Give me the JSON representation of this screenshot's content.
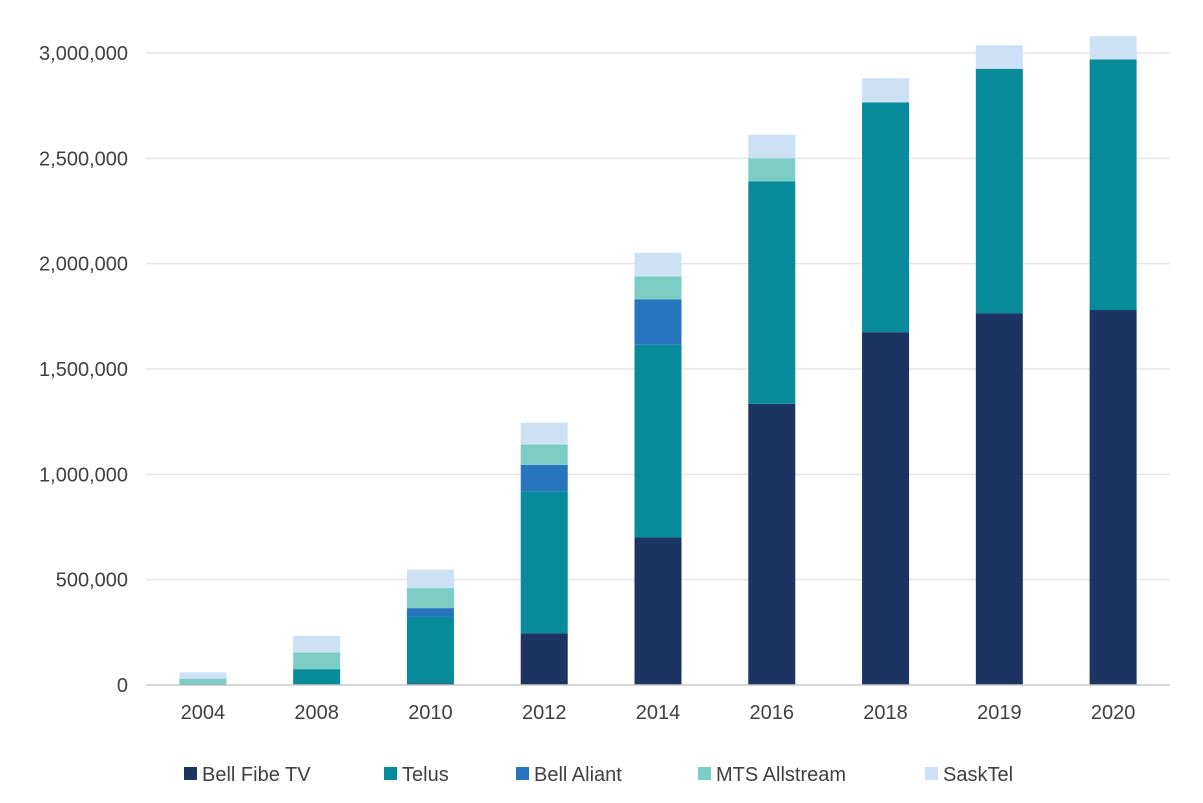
{
  "chart_data": {
    "type": "bar",
    "stacked": true,
    "categories": [
      "2004",
      "2008",
      "2010",
      "2012",
      "2014",
      "2016",
      "2018",
      "2019",
      "2020"
    ],
    "series": [
      {
        "name": "Bell Fibe TV",
        "color": "#1c3461",
        "values": [
          0,
          0,
          8000,
          245000,
          700000,
          1335000,
          1675000,
          1765000,
          1780000
        ]
      },
      {
        "name": "Telus",
        "color": "#078b9a",
        "values": [
          5000,
          75000,
          315000,
          675000,
          915000,
          1055000,
          1090000,
          1160000,
          1190000
        ]
      },
      {
        "name": "Bell Aliant",
        "color": "#2775be",
        "values": [
          0,
          0,
          42000,
          125000,
          215000,
          0,
          0,
          0,
          0
        ]
      },
      {
        "name": "MTS Allstream",
        "color": "#7ccdc4",
        "values": [
          25000,
          80000,
          95000,
          97000,
          110000,
          110000,
          0,
          0,
          0
        ]
      },
      {
        "name": "SaskTel",
        "color": "#cce1f4",
        "values": [
          30000,
          78000,
          88000,
          103000,
          112000,
          112000,
          115000,
          112000,
          110000
        ]
      }
    ],
    "y_ticks": [
      0,
      500000,
      1000000,
      1500000,
      2000000,
      2500000,
      3000000
    ],
    "y_tick_labels": [
      "0",
      "500,000",
      "1,000,000",
      "1,500,000",
      "2,000,000",
      "2,500,000",
      "3,000,000"
    ],
    "ylim": [
      0,
      3000000
    ],
    "grid": true,
    "legend_position": "bottom"
  }
}
